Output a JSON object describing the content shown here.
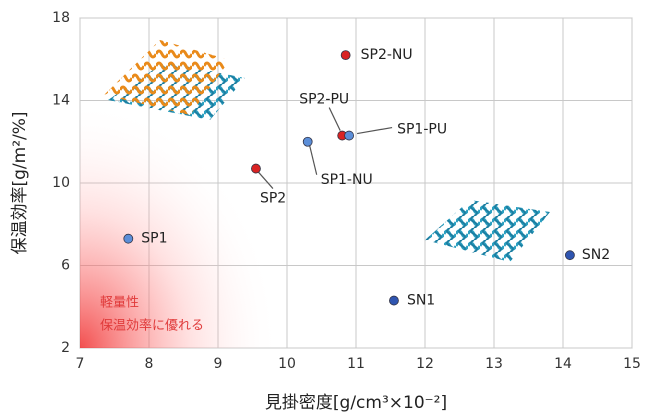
{
  "chart_data": {
    "type": "scatter",
    "x_label": "見掛密度[g/cm³×10⁻²]",
    "y_label": "保温効率[g/m²/%]",
    "annotation": [
      "軽量性",
      "保温効率に優れる"
    ],
    "xlim": [
      7,
      15
    ],
    "xticks": [
      7,
      8,
      9,
      10,
      11,
      12,
      13,
      14,
      15
    ],
    "ylim": [
      2,
      18
    ],
    "yticks": [
      2,
      6,
      10,
      14,
      18
    ],
    "grid": true,
    "points": [
      {
        "label": "SP1",
        "x": 7.7,
        "y": 7.3,
        "color": "#5b8ed8"
      },
      {
        "label": "SP2",
        "x": 9.55,
        "y": 10.7,
        "color": "#d92323"
      },
      {
        "label": "SP1-NU",
        "x": 10.3,
        "y": 12.0,
        "color": "#5b8ed8"
      },
      {
        "label": "SP2-PU",
        "x": 10.8,
        "y": 12.3,
        "color": "#d92323"
      },
      {
        "label": "SP1-PU",
        "x": 10.9,
        "y": 12.3,
        "color": "#5b8ed8"
      },
      {
        "label": "SP2-NU",
        "x": 10.85,
        "y": 16.2,
        "color": "#d92323"
      },
      {
        "label": "SN1",
        "x": 11.55,
        "y": 4.3,
        "color": "#2f55b0"
      },
      {
        "label": "SN2",
        "x": 14.1,
        "y": 6.5,
        "color": "#2f55b0"
      }
    ]
  }
}
